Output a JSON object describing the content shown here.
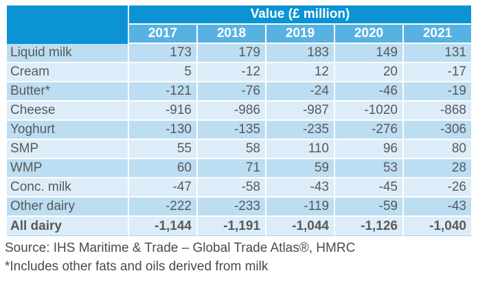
{
  "colors": {
    "header_blue": "#0c93d3",
    "subheader_blue": "#57b2e2",
    "row_dark": "#bcddf2",
    "row_light": "#dcedf9",
    "text_gray": "#595959"
  },
  "table": {
    "title": "Value (£ million)",
    "years": [
      "2017",
      "2018",
      "2019",
      "2020",
      "2021"
    ],
    "rows": [
      {
        "label": "Liquid milk",
        "values": [
          "173",
          "179",
          "183",
          "149",
          "131"
        ],
        "bold": false
      },
      {
        "label": "Cream",
        "values": [
          "5",
          "-12",
          "12",
          "20",
          "-17"
        ],
        "bold": false
      },
      {
        "label": "Butter*",
        "values": [
          "-121",
          "-76",
          "-24",
          "-46",
          "-19"
        ],
        "bold": false
      },
      {
        "label": "Cheese",
        "values": [
          "-916",
          "-986",
          "-987",
          "-1020",
          "-868"
        ],
        "bold": false
      },
      {
        "label": "Yoghurt",
        "values": [
          "-130",
          "-135",
          "-235",
          "-276",
          "-306"
        ],
        "bold": false
      },
      {
        "label": "SMP",
        "values": [
          "55",
          "58",
          "110",
          "96",
          "80"
        ],
        "bold": false
      },
      {
        "label": "WMP",
        "values": [
          "60",
          "71",
          "59",
          "53",
          "28"
        ],
        "bold": false
      },
      {
        "label": "Conc. milk",
        "values": [
          "-47",
          "-58",
          "-43",
          "-45",
          "-26"
        ],
        "bold": false
      },
      {
        "label": "Other dairy",
        "values": [
          "-222",
          "-233",
          "-119",
          "-59",
          "-43"
        ],
        "bold": false
      },
      {
        "label": "All dairy",
        "values": [
          "-1,144",
          "-1,191",
          "-1,044",
          "-1,126",
          "-1,040"
        ],
        "bold": true
      }
    ]
  },
  "footer": {
    "source": "Source:  IHS Maritime & Trade – Global Trade Atlas®, HMRC",
    "footnote": "*Includes other fats and oils derived from milk"
  },
  "chart_data": {
    "type": "table",
    "title": "Value (£ million)",
    "categories": [
      "2017",
      "2018",
      "2019",
      "2020",
      "2021"
    ],
    "series": [
      {
        "name": "Liquid milk",
        "values": [
          173,
          179,
          183,
          149,
          131
        ]
      },
      {
        "name": "Cream",
        "values": [
          5,
          -12,
          12,
          20,
          -17
        ]
      },
      {
        "name": "Butter*",
        "values": [
          -121,
          -76,
          -24,
          -46,
          -19
        ]
      },
      {
        "name": "Cheese",
        "values": [
          -916,
          -986,
          -987,
          -1020,
          -868
        ]
      },
      {
        "name": "Yoghurt",
        "values": [
          -130,
          -135,
          -235,
          -276,
          -306
        ]
      },
      {
        "name": "SMP",
        "values": [
          55,
          58,
          110,
          96,
          80
        ]
      },
      {
        "name": "WMP",
        "values": [
          60,
          71,
          59,
          53,
          28
        ]
      },
      {
        "name": "Conc. milk",
        "values": [
          -47,
          -58,
          -43,
          -45,
          -26
        ]
      },
      {
        "name": "Other dairy",
        "values": [
          -222,
          -233,
          -119,
          -59,
          -43
        ]
      },
      {
        "name": "All dairy",
        "values": [
          -1144,
          -1191,
          -1044,
          -1126,
          -1040
        ]
      }
    ],
    "source": "Source:  IHS Maritime & Trade – Global Trade Atlas®, HMRC",
    "footnote": "*Includes other fats and oils derived from milk"
  }
}
